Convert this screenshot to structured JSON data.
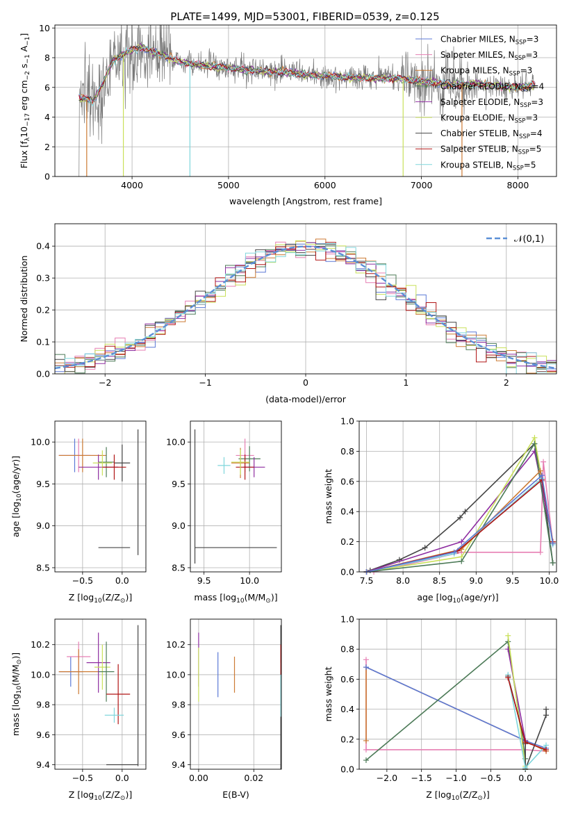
{
  "figure_title": "PLATE=1499, MJD=53001, FIBERID=0539, z=0.125",
  "legend_entries": [
    {
      "label": "Chabrier MILES, N",
      "sub": "SSP",
      "tail": "=3",
      "color": "#5b79d6"
    },
    {
      "label": "Salpeter MILES, N",
      "sub": "SSP",
      "tail": "=3",
      "color": "#e67fb3"
    },
    {
      "label": "Kroupa MILES, N",
      "sub": "SSP",
      "tail": "=3",
      "color": "#cc7a33"
    },
    {
      "label": "Chabrier ELODIE, N",
      "sub": "SSP",
      "tail": "=4",
      "color": "#4c7a57"
    },
    {
      "label": "Salpeter ELODIE, N",
      "sub": "SSP",
      "tail": "=3",
      "color": "#8e2ca0"
    },
    {
      "label": "Kroupa ELODIE, N",
      "sub": "SSP",
      "tail": "=3",
      "color": "#c9e05a"
    },
    {
      "label": "Chabrier STELIB, N",
      "sub": "SSP",
      "tail": "=4",
      "color": "#444444"
    },
    {
      "label": "Salpeter STELIB, N",
      "sub": "SSP",
      "tail": "=5",
      "color": "#b01515"
    },
    {
      "label": "Kroupa STELIB, N",
      "sub": "SSP",
      "tail": "=5",
      "color": "#7fd6dc"
    }
  ],
  "chart_data": [
    {
      "id": "spectrum",
      "type": "line",
      "xlabel": "wavelength [Angstrom, rest frame]",
      "ylabel_parts": [
        "Flux [f",
        "λ",
        "10",
        "−17",
        " erg cm",
        "−2",
        " s",
        "−1",
        " A",
        "−1",
        "]"
      ],
      "xlim": [
        3200,
        8400
      ],
      "ylim": [
        0,
        10.2
      ],
      "xticks": [
        4000,
        5000,
        6000,
        7000,
        8000
      ],
      "yticks": [
        0,
        2,
        4,
        6,
        8,
        10
      ],
      "data_range": [
        3450,
        8180
      ],
      "continuum": [
        [
          3450,
          5.3
        ],
        [
          3600,
          5.1
        ],
        [
          3700,
          6.3
        ],
        [
          3800,
          7.8
        ],
        [
          3950,
          8.4
        ],
        [
          4100,
          8.7
        ],
        [
          4300,
          8.2
        ],
        [
          4500,
          7.7
        ],
        [
          4700,
          7.5
        ],
        [
          5000,
          7.3
        ],
        [
          5300,
          7.1
        ],
        [
          5600,
          7.0
        ],
        [
          5900,
          6.8
        ],
        [
          6200,
          6.7
        ],
        [
          6500,
          6.6
        ],
        [
          6800,
          6.6
        ],
        [
          7000,
          6.4
        ],
        [
          7300,
          6.2
        ],
        [
          7600,
          6.2
        ],
        [
          7900,
          6.0
        ],
        [
          8180,
          6.1
        ]
      ],
      "dips": [
        [
          3530,
          0
        ],
        [
          3910,
          0
        ],
        [
          4600,
          0
        ],
        [
          6810,
          0
        ],
        [
          7420,
          0
        ]
      ]
    },
    {
      "id": "residuals",
      "type": "histogram",
      "xlabel": "(data-model)/error",
      "ylabel": "Normed distribution",
      "xlim": [
        -2.5,
        2.5
      ],
      "ylim": [
        0,
        0.47
      ],
      "xticks": [
        -2,
        -1,
        0,
        1,
        2
      ],
      "yticks": [
        0.0,
        0.1,
        0.2,
        0.3,
        0.4
      ],
      "bin_width": 0.1,
      "reference": {
        "label": "𝒩(0,1)",
        "color": "#5b8fd6",
        "mu": 0,
        "sigma": 1
      }
    },
    {
      "id": "age_vs_Z",
      "type": "errorbar",
      "xlabel_parts": [
        "Z [log",
        "10",
        "(Z/Z",
        "⊙",
        ")]"
      ],
      "ylabel_parts": [
        "age  [log",
        "10",
        "(age/yr)]"
      ],
      "xlim": [
        -0.85,
        0.3
      ],
      "ylim": [
        8.45,
        10.25
      ],
      "xticks": [
        -0.5,
        0.0
      ],
      "yticks": [
        8.5,
        9.0,
        9.5,
        10.0
      ],
      "points": [
        {
          "x": -0.6,
          "y": 9.84,
          "xerr": 0.2,
          "yerr": 0.2,
          "color": "#5b79d6"
        },
        {
          "x": -0.55,
          "y": 9.84,
          "xerr": 0.25,
          "yerr": 0.2,
          "color": "#e67fb3"
        },
        {
          "x": -0.5,
          "y": 9.84,
          "xerr": 0.3,
          "yerr": 0.2,
          "color": "#cc7a33"
        },
        {
          "x": -0.2,
          "y": 9.76,
          "xerr": 0.1,
          "yerr": 0.18,
          "color": "#4c7a57"
        },
        {
          "x": -0.3,
          "y": 9.7,
          "xerr": 0.25,
          "yerr": 0.15,
          "color": "#8e2ca0"
        },
        {
          "x": -0.25,
          "y": 9.75,
          "xerr": 0.12,
          "yerr": 0.15,
          "color": "#c9e05a"
        },
        {
          "x": 0.0,
          "y": 9.75,
          "xerr": 0.1,
          "yerr": 0.22,
          "color": "#444444"
        },
        {
          "x": 0.2,
          "y": 9.4,
          "xerr": 0.0,
          "yerr": 0.75,
          "color": "#444444"
        },
        {
          "x": -0.1,
          "y": 8.74,
          "xerr": 0.2,
          "yerr": 0.0,
          "color": "#444444"
        },
        {
          "x": -0.1,
          "y": 9.7,
          "xerr": 0.15,
          "yerr": 0.15,
          "color": "#b01515"
        }
      ]
    },
    {
      "id": "age_vs_mass",
      "type": "errorbar",
      "xlabel_parts": [
        "mass [log",
        "10",
        "(M/M",
        "⊙",
        ")]"
      ],
      "xlim": [
        9.35,
        10.35
      ],
      "ylim": [
        8.45,
        10.25
      ],
      "xticks": [
        9.5,
        10.0
      ],
      "yticks": [
        8.5,
        9.0,
        9.5,
        10.0
      ],
      "points": [
        {
          "x": 9.72,
          "y": 9.72,
          "xerr": 0.07,
          "yerr": 0.1,
          "color": "#7fd6dc"
        },
        {
          "x": 9.95,
          "y": 9.84,
          "xerr": 0.1,
          "yerr": 0.2,
          "color": "#e67fb3"
        },
        {
          "x": 10.0,
          "y": 9.8,
          "xerr": 0.12,
          "yerr": 0.15,
          "color": "#4c7a57"
        },
        {
          "x": 9.9,
          "y": 9.75,
          "xerr": 0.1,
          "yerr": 0.18,
          "color": "#cc7a33"
        },
        {
          "x": 10.05,
          "y": 9.7,
          "xerr": 0.12,
          "yerr": 0.12,
          "color": "#8e2ca0"
        },
        {
          "x": 9.95,
          "y": 9.7,
          "xerr": 0.1,
          "yerr": 0.15,
          "color": "#b01515"
        },
        {
          "x": 9.9,
          "y": 9.76,
          "xerr": 0.1,
          "yerr": 0.15,
          "color": "#c9e05a"
        },
        {
          "x": 9.4,
          "y": 9.35,
          "xerr": 0.0,
          "yerr": 0.8,
          "color": "#444444"
        },
        {
          "x": 9.85,
          "y": 8.74,
          "xerr": 0.45,
          "yerr": 0.0,
          "color": "#444444"
        }
      ]
    },
    {
      "id": "mass_weight_vs_age",
      "type": "line",
      "xlabel_parts": [
        "age  [log",
        "10",
        "(age/yr)]"
      ],
      "ylabel": "mass weight",
      "xlim": [
        7.4,
        10.1
      ],
      "ylim": [
        0,
        1.0
      ],
      "xticks": [
        7.5,
        8.0,
        8.5,
        9.0,
        9.5,
        10.0
      ],
      "yticks": [
        0.0,
        0.2,
        0.4,
        0.6,
        0.8,
        1.0
      ],
      "series": [
        {
          "color": "#e67fb3",
          "points": [
            [
              7.6,
              0.0
            ],
            [
              8.8,
              0.13
            ],
            [
              9.88,
              0.13
            ],
            [
              9.92,
              0.73
            ],
            [
              10.05,
              0.19
            ]
          ]
        },
        {
          "color": "#444444",
          "points": [
            [
              7.55,
              0.01
            ],
            [
              7.95,
              0.08
            ],
            [
              8.3,
              0.16
            ],
            [
              8.78,
              0.36
            ],
            [
              8.85,
              0.4
            ],
            [
              9.8,
              0.85
            ],
            [
              9.9,
              0.61
            ],
            [
              10.05,
              0.06
            ]
          ]
        },
        {
          "color": "#8e2ca0",
          "points": [
            [
              7.5,
              0.0
            ],
            [
              8.8,
              0.2
            ],
            [
              9.8,
              0.8
            ],
            [
              10.05,
              0.2
            ]
          ]
        },
        {
          "color": "#c9e05a",
          "points": [
            [
              7.5,
              0.0
            ],
            [
              8.8,
              0.1
            ],
            [
              9.8,
              0.89
            ],
            [
              10.05,
              0.2
            ]
          ]
        },
        {
          "color": "#4c7a57",
          "points": [
            [
              7.5,
              0.0
            ],
            [
              8.8,
              0.07
            ],
            [
              9.8,
              0.85
            ],
            [
              10.05,
              0.06
            ]
          ]
        },
        {
          "color": "#cc7a33",
          "points": [
            [
              7.5,
              0.0
            ],
            [
              8.8,
              0.15
            ],
            [
              9.88,
              0.67
            ],
            [
              10.05,
              0.19
            ]
          ]
        },
        {
          "color": "#7fd6dc",
          "points": [
            [
              7.5,
              0.0
            ],
            [
              8.7,
              0.12
            ],
            [
              9.9,
              0.62
            ],
            [
              10.05,
              0.18
            ]
          ]
        },
        {
          "color": "#b01515",
          "points": [
            [
              7.5,
              0.0
            ],
            [
              8.75,
              0.14
            ],
            [
              9.9,
              0.61
            ],
            [
              10.05,
              0.2
            ]
          ]
        },
        {
          "color": "#5b79d6",
          "points": [
            [
              7.5,
              0.0
            ],
            [
              8.7,
              0.13
            ],
            [
              9.9,
              0.64
            ],
            [
              10.05,
              0.19
            ]
          ]
        }
      ]
    },
    {
      "id": "mass_vs_Z",
      "type": "errorbar",
      "xlabel_parts": [
        "Z [log",
        "10",
        "(Z/Z",
        "⊙",
        ")]"
      ],
      "ylabel_parts": [
        "mass [log",
        "10",
        "(M/M",
        "⊙",
        ")]"
      ],
      "xlim": [
        -0.85,
        0.3
      ],
      "ylim": [
        9.37,
        10.37
      ],
      "xticks": [
        -0.5,
        0.0
      ],
      "yticks": [
        9.4,
        9.6,
        9.8,
        10.0,
        10.2
      ],
      "points": [
        {
          "x": -0.65,
          "y": 10.02,
          "xerr": 0.15,
          "yerr": 0.1,
          "color": "#5b79d6"
        },
        {
          "x": -0.55,
          "y": 10.12,
          "xerr": 0.15,
          "yerr": 0.1,
          "color": "#e67fb3"
        },
        {
          "x": -0.55,
          "y": 10.02,
          "xerr": 0.25,
          "yerr": 0.15,
          "color": "#cc7a33"
        },
        {
          "x": -0.3,
          "y": 10.08,
          "xerr": 0.15,
          "yerr": 0.2,
          "color": "#8e2ca0"
        },
        {
          "x": -0.25,
          "y": 10.05,
          "xerr": 0.1,
          "yerr": 0.15,
          "color": "#c9e05a"
        },
        {
          "x": -0.2,
          "y": 10.02,
          "xerr": 0.1,
          "yerr": 0.2,
          "color": "#4c7a57"
        },
        {
          "x": -0.05,
          "y": 9.87,
          "xerr": 0.15,
          "yerr": 0.2,
          "color": "#b01515"
        },
        {
          "x": -0.1,
          "y": 9.73,
          "xerr": 0.12,
          "yerr": 0.05,
          "color": "#7fd6dc"
        },
        {
          "x": 0.2,
          "y": 9.86,
          "xerr": 0.0,
          "yerr": 0.47,
          "color": "#444444"
        },
        {
          "x": -0.0,
          "y": 9.4,
          "xerr": 0.2,
          "yerr": 0.0,
          "color": "#444444"
        }
      ]
    },
    {
      "id": "mass_vs_ebv",
      "type": "errorbar",
      "xlabel": "E(B-V)",
      "xlim": [
        -0.003,
        0.03
      ],
      "ylim": [
        9.37,
        10.37
      ],
      "xticks": [
        0.0,
        0.02
      ],
      "ytick_labels_fmt": 1,
      "yticks": [
        9.4,
        9.6,
        9.8,
        10.0,
        10.2
      ],
      "points": [
        {
          "x": 0.0,
          "y": 10.1,
          "xerr": 0.0,
          "yerr": 0.18,
          "color": "#8e2ca0"
        },
        {
          "x": 0.0,
          "y": 10.0,
          "xerr": 0.0,
          "yerr": 0.18,
          "color": "#c9e05a"
        },
        {
          "x": 0.007,
          "y": 10.0,
          "xerr": 0.0,
          "yerr": 0.15,
          "color": "#5b79d6"
        },
        {
          "x": 0.013,
          "y": 10.0,
          "xerr": 0.0,
          "yerr": 0.12,
          "color": "#cc7a33"
        },
        {
          "x": 0.0298,
          "y": 9.85,
          "xerr": 0.0,
          "yerr": 0.48,
          "color": "#444444"
        },
        {
          "x": 0.0298,
          "y": 9.9,
          "xerr": 0.0,
          "yerr": 0.18,
          "color": "#7fd6dc"
        },
        {
          "x": 0.0298,
          "y": 10.1,
          "xerr": 0.0,
          "yerr": 0.1,
          "color": "#b01515"
        }
      ]
    },
    {
      "id": "mass_weight_vs_Z",
      "type": "line",
      "xlabel_parts": [
        "Z [log",
        "10",
        "(Z/Z",
        "⊙",
        ")]"
      ],
      "ylabel": "mass weight",
      "xlim": [
        -2.4,
        0.45
      ],
      "ylim": [
        0,
        1.0
      ],
      "xticks": [
        -2.0,
        -1.5,
        -1.0,
        -0.5,
        0.0
      ],
      "yticks": [
        0.0,
        0.2,
        0.4,
        0.6,
        0.8,
        1.0
      ],
      "series": [
        {
          "color": "#e67fb3",
          "points": [
            [
              -2.3,
              0.73
            ],
            [
              -2.3,
              0.13
            ],
            [
              0.0,
              0.13
            ],
            [
              0.3,
              0.12
            ]
          ]
        },
        {
          "color": "#cc7a33",
          "points": [
            [
              -2.3,
              0.19
            ],
            [
              -2.3,
              0.68
            ],
            [
              0.0,
              0.19
            ],
            [
              0.3,
              0.12
            ]
          ]
        },
        {
          "color": "#5b79d6",
          "points": [
            [
              -2.3,
              0.68
            ],
            [
              0.0,
              0.19
            ],
            [
              0.3,
              0.14
            ]
          ]
        },
        {
          "color": "#4c7a57",
          "points": [
            [
              -2.3,
              0.06
            ],
            [
              -0.25,
              0.85
            ],
            [
              0.0,
              0.07
            ],
            [
              0.0,
              0.0
            ]
          ]
        },
        {
          "color": "#8e2ca0",
          "points": [
            [
              -0.25,
              0.8
            ],
            [
              0.0,
              0.19
            ],
            [
              0.0,
              0.0
            ]
          ]
        },
        {
          "color": "#c9e05a",
          "points": [
            [
              -0.25,
              0.89
            ],
            [
              0.0,
              0.02
            ],
            [
              0.0,
              0.0
            ]
          ]
        },
        {
          "color": "#444444",
          "points": [
            [
              -0.25,
              0.62
            ],
            [
              0.0,
              0.17
            ],
            [
              0.0,
              0.0
            ],
            [
              0.3,
              0.36
            ],
            [
              0.3,
              0.4
            ]
          ]
        },
        {
          "color": "#7fd6dc",
          "points": [
            [
              -0.25,
              0.63
            ],
            [
              0.0,
              0.01
            ],
            [
              0.3,
              0.16
            ]
          ]
        },
        {
          "color": "#b01515",
          "points": [
            [
              -0.25,
              0.61
            ],
            [
              0.0,
              0.18
            ],
            [
              0.3,
              0.13
            ]
          ]
        }
      ]
    }
  ]
}
